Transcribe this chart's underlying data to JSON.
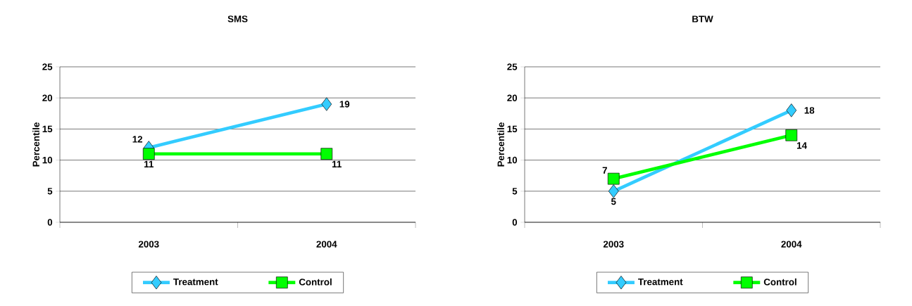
{
  "chart_data": [
    {
      "type": "line",
      "title": "SMS",
      "ylabel": "Percentile",
      "categories": [
        "2003",
        "2004"
      ],
      "series": [
        {
          "name": "Treatment",
          "color": "#33ccff",
          "marker": "diamond",
          "values": [
            12,
            19
          ]
        },
        {
          "name": "Control",
          "color": "#00ff00",
          "marker": "square",
          "values": [
            11,
            11
          ]
        }
      ],
      "ylim": [
        0,
        25
      ],
      "yticks": [
        0,
        5,
        10,
        15,
        20,
        25
      ],
      "grid": "y",
      "legend": "bottom",
      "data_labels": true,
      "line_style": "solid"
    },
    {
      "type": "line",
      "title": "BTW",
      "ylabel": "Percentile",
      "categories": [
        "2003",
        "2004"
      ],
      "series": [
        {
          "name": "Treatment",
          "color": "#33ccff",
          "marker": "diamond",
          "values": [
            5,
            18
          ]
        },
        {
          "name": "Control",
          "color": "#00ff00",
          "marker": "square",
          "values": [
            7,
            14
          ]
        }
      ],
      "ylim": [
        0,
        25
      ],
      "yticks": [
        0,
        5,
        10,
        15,
        20,
        25
      ],
      "grid": "y",
      "legend": "bottom",
      "data_labels": true,
      "line_style": "solid"
    }
  ]
}
